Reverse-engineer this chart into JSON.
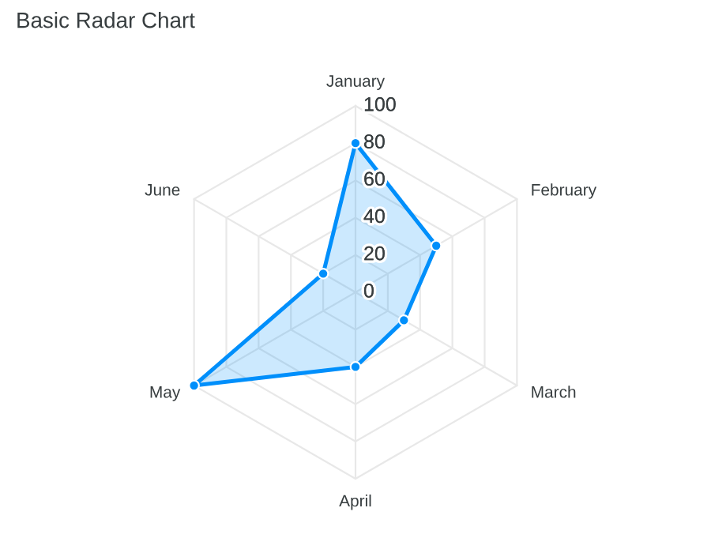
{
  "chart_data": {
    "type": "radar",
    "title": "Basic Radar Chart",
    "categories": [
      "January",
      "February",
      "March",
      "April",
      "May",
      "June"
    ],
    "series": [
      {
        "color": "#008ffb",
        "values": [
          80,
          50,
          30,
          40,
          100,
          20
        ]
      }
    ],
    "ylim": [
      0,
      100
    ],
    "yticks": [
      0,
      20,
      40,
      60,
      80,
      100
    ],
    "grid": true,
    "marker": "circle",
    "line_style": "solid"
  }
}
